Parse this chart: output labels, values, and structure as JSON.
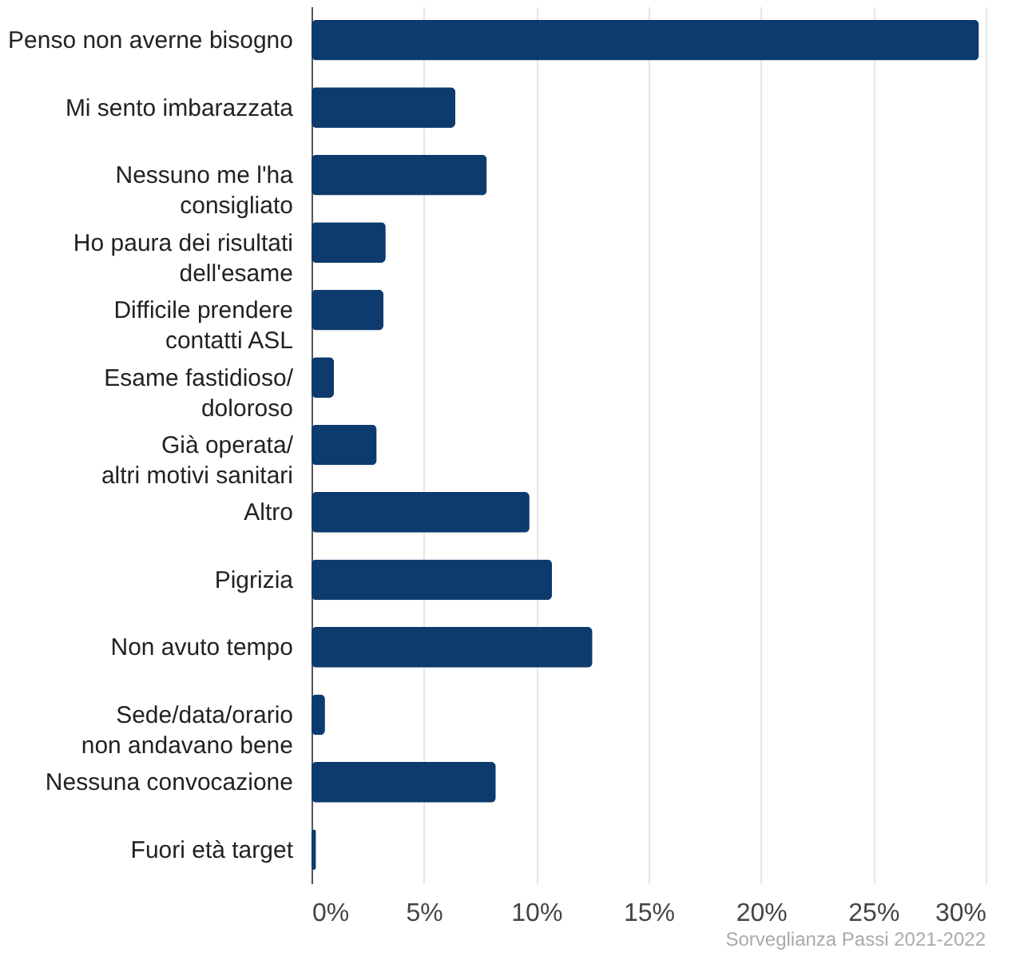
{
  "chart_data": {
    "type": "bar",
    "orientation": "horizontal",
    "categories": [
      "Penso non averne bisogno",
      "Mi sento imbarazzata",
      "Nessuno me l'ha\nconsigliato",
      "Ho paura dei risultati\ndell'esame",
      "Difficile prendere\ncontatti ASL",
      "Esame fastidioso/\ndoloroso",
      "Già operata/\naltri motivi sanitari",
      "Altro",
      "Pigrizia",
      "Non avuto tempo",
      "Sede/data/orario\nnon andavano bene",
      "Nessuna convocazione",
      "Fuori età target"
    ],
    "values": [
      29.7,
      6.4,
      7.8,
      3.3,
      3.2,
      1.0,
      2.9,
      9.7,
      10.7,
      12.5,
      0.6,
      8.2,
      0.2
    ],
    "color": "#0d3b6e",
    "xlim": [
      0,
      30
    ],
    "xticks": [
      {
        "value": 0,
        "label": "0%"
      },
      {
        "value": 5,
        "label": "5%"
      },
      {
        "value": 10,
        "label": "10%"
      },
      {
        "value": 15,
        "label": "15%"
      },
      {
        "value": 20,
        "label": "20%"
      },
      {
        "value": 25,
        "label": "25%"
      },
      {
        "value": 30,
        "label": "30%"
      }
    ],
    "grid": "x",
    "annotations": [
      "Sorveglianza Passi 2021-2022"
    ]
  }
}
